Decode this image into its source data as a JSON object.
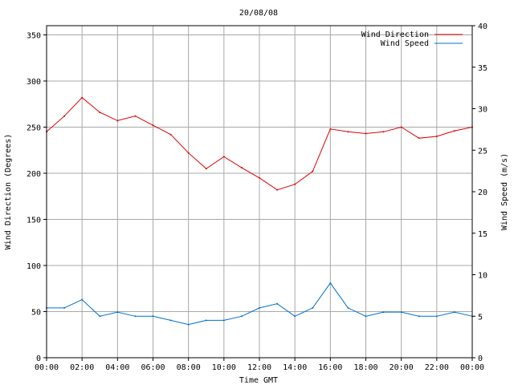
{
  "chart_data": {
    "type": "line",
    "title": "20/08/08",
    "xlabel": "Time GMT",
    "ylabel_left": "Wind Direction (Degrees)",
    "ylabel_right": "Wind Speed (m/s)",
    "x_ticks": [
      "00:00",
      "02:00",
      "04:00",
      "06:00",
      "08:00",
      "10:00",
      "12:00",
      "14:00",
      "16:00",
      "18:00",
      "20:00",
      "22:00",
      "00:00"
    ],
    "x_range_hours": [
      0,
      24
    ],
    "ylim_left": [
      0,
      360
    ],
    "yticks_left": [
      "0",
      "50",
      "100",
      "150",
      "200",
      "250",
      "300",
      "350"
    ],
    "ylim_right": [
      0,
      40
    ],
    "yticks_right": [
      "0",
      "5",
      "10",
      "15",
      "20",
      "25",
      "30",
      "35",
      "40"
    ],
    "grid": true,
    "legend_position": "top-right",
    "colors": {
      "direction": "#e00000",
      "speed": "#0070d0",
      "grid": "#a8a8a8"
    },
    "series": [
      {
        "name": "Wind Direction",
        "axis": "left",
        "x_hours": [
          0,
          1,
          2,
          3,
          4,
          5,
          6,
          7,
          8,
          9,
          10,
          11,
          12,
          13,
          14,
          15,
          16,
          17,
          18,
          19,
          20,
          21,
          22,
          23,
          24
        ],
        "values": [
          245,
          262,
          282,
          266,
          257,
          262,
          252,
          242,
          222,
          205,
          218,
          206,
          195,
          182,
          188,
          202,
          248,
          245,
          243,
          245,
          250,
          238,
          240,
          246,
          250
        ]
      },
      {
        "name": "Wind Speed",
        "axis": "right",
        "x_hours": [
          0,
          1,
          2,
          3,
          4,
          5,
          6,
          7,
          8,
          9,
          10,
          11,
          12,
          13,
          14,
          15,
          16,
          17,
          18,
          19,
          20,
          21,
          22,
          23,
          24
        ],
        "values": [
          6,
          6,
          7,
          5,
          5.5,
          5,
          5,
          4.5,
          4,
          4.5,
          4.5,
          5,
          6,
          6.5,
          5,
          6,
          9,
          6,
          5,
          5.5,
          5.5,
          5,
          5,
          5.5,
          5
        ]
      }
    ]
  }
}
